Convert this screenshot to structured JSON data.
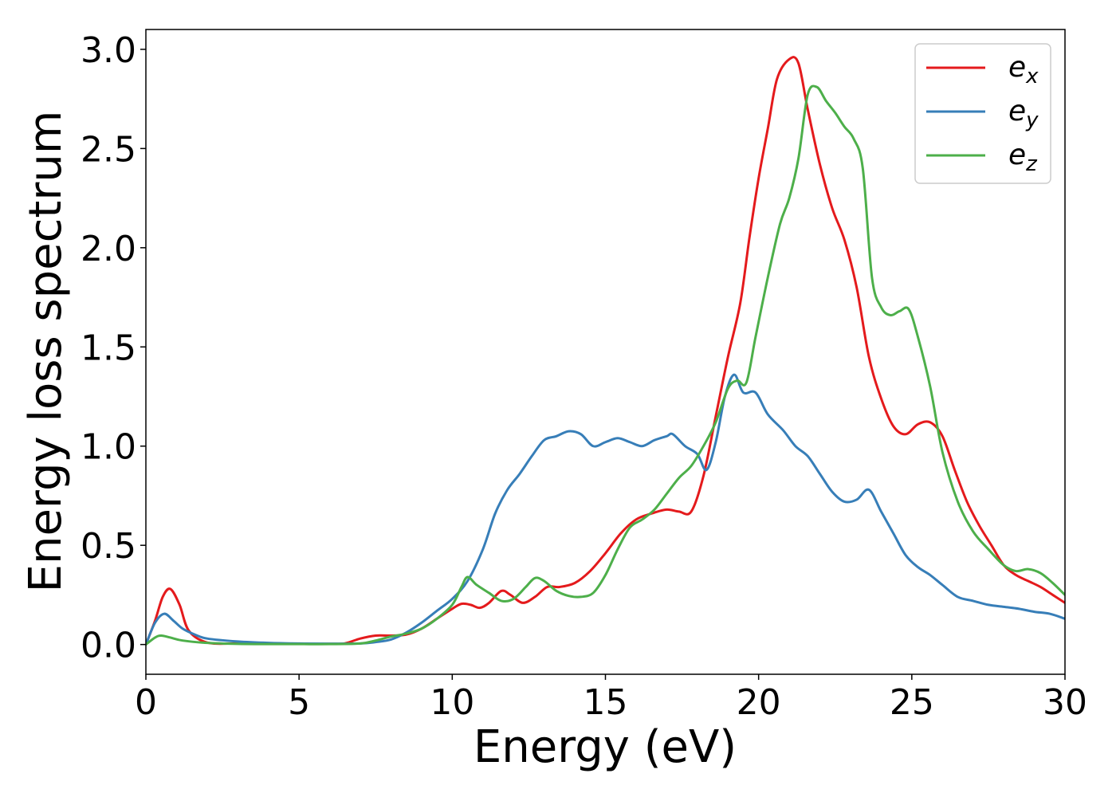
{
  "chart_data": {
    "type": "line",
    "xlabel": "Energy (eV)",
    "ylabel": "Energy loss spectrum",
    "xlim": [
      0,
      30
    ],
    "ylim": [
      -0.15,
      3.1
    ],
    "xticks": [
      0,
      5,
      10,
      15,
      20,
      25,
      30
    ],
    "xtick_labels": [
      "0",
      "5",
      "10",
      "15",
      "20",
      "25",
      "30"
    ],
    "yticks": [
      0.0,
      0.5,
      1.0,
      1.5,
      2.0,
      2.5,
      3.0
    ],
    "ytick_labels": [
      "0.0",
      "0.5",
      "1.0",
      "1.5",
      "2.0",
      "2.5",
      "3.0"
    ],
    "grid": false,
    "legend_position": "top-right",
    "series": [
      {
        "name": "e_x",
        "label_base": "e",
        "label_sub": "x",
        "color": "#e41a1c",
        "points": [
          [
            0,
            0.0
          ],
          [
            0.3,
            0.12
          ],
          [
            0.55,
            0.24
          ],
          [
            0.8,
            0.28
          ],
          [
            1.1,
            0.2
          ],
          [
            1.4,
            0.07
          ],
          [
            2.0,
            0.01
          ],
          [
            3.0,
            0.005
          ],
          [
            4.0,
            0.003
          ],
          [
            5.0,
            0.003
          ],
          [
            6.0,
            0.003
          ],
          [
            6.5,
            0.006
          ],
          [
            7.0,
            0.03
          ],
          [
            7.5,
            0.045
          ],
          [
            8.0,
            0.045
          ],
          [
            8.5,
            0.05
          ],
          [
            9.0,
            0.08
          ],
          [
            9.5,
            0.13
          ],
          [
            10.0,
            0.18
          ],
          [
            10.3,
            0.205
          ],
          [
            10.6,
            0.2
          ],
          [
            10.9,
            0.185
          ],
          [
            11.2,
            0.21
          ],
          [
            11.6,
            0.27
          ],
          [
            11.9,
            0.25
          ],
          [
            12.3,
            0.21
          ],
          [
            12.7,
            0.24
          ],
          [
            13.1,
            0.29
          ],
          [
            13.5,
            0.29
          ],
          [
            14.0,
            0.31
          ],
          [
            14.5,
            0.37
          ],
          [
            15.0,
            0.46
          ],
          [
            15.5,
            0.56
          ],
          [
            16.0,
            0.63
          ],
          [
            16.5,
            0.66
          ],
          [
            17.0,
            0.68
          ],
          [
            17.4,
            0.67
          ],
          [
            17.8,
            0.67
          ],
          [
            18.2,
            0.85
          ],
          [
            18.6,
            1.15
          ],
          [
            19.0,
            1.45
          ],
          [
            19.4,
            1.72
          ],
          [
            19.7,
            2.05
          ],
          [
            20.0,
            2.35
          ],
          [
            20.3,
            2.6
          ],
          [
            20.6,
            2.85
          ],
          [
            21.0,
            2.95
          ],
          [
            21.3,
            2.93
          ],
          [
            21.6,
            2.7
          ],
          [
            22.0,
            2.42
          ],
          [
            22.4,
            2.2
          ],
          [
            22.8,
            2.04
          ],
          [
            23.2,
            1.8
          ],
          [
            23.6,
            1.45
          ],
          [
            24.0,
            1.24
          ],
          [
            24.4,
            1.1
          ],
          [
            24.8,
            1.06
          ],
          [
            25.2,
            1.11
          ],
          [
            25.6,
            1.12
          ],
          [
            26.0,
            1.05
          ],
          [
            26.4,
            0.88
          ],
          [
            26.8,
            0.72
          ],
          [
            27.2,
            0.6
          ],
          [
            27.6,
            0.5
          ],
          [
            28.0,
            0.4
          ],
          [
            28.4,
            0.35
          ],
          [
            28.8,
            0.32
          ],
          [
            29.2,
            0.29
          ],
          [
            29.6,
            0.25
          ],
          [
            30.0,
            0.21
          ]
        ]
      },
      {
        "name": "e_y",
        "label_base": "e",
        "label_sub": "y",
        "color": "#377eb8",
        "points": [
          [
            0,
            0.0
          ],
          [
            0.3,
            0.11
          ],
          [
            0.6,
            0.155
          ],
          [
            0.9,
            0.12
          ],
          [
            1.2,
            0.08
          ],
          [
            1.6,
            0.05
          ],
          [
            2.0,
            0.03
          ],
          [
            3.0,
            0.015
          ],
          [
            4.0,
            0.008
          ],
          [
            5.0,
            0.005
          ],
          [
            6.0,
            0.004
          ],
          [
            7.0,
            0.005
          ],
          [
            7.5,
            0.012
          ],
          [
            8.0,
            0.025
          ],
          [
            8.5,
            0.06
          ],
          [
            9.0,
            0.11
          ],
          [
            9.5,
            0.17
          ],
          [
            10.0,
            0.23
          ],
          [
            10.5,
            0.32
          ],
          [
            11.0,
            0.48
          ],
          [
            11.4,
            0.66
          ],
          [
            11.8,
            0.78
          ],
          [
            12.2,
            0.86
          ],
          [
            12.6,
            0.95
          ],
          [
            13.0,
            1.03
          ],
          [
            13.4,
            1.05
          ],
          [
            13.8,
            1.075
          ],
          [
            14.2,
            1.06
          ],
          [
            14.6,
            1.0
          ],
          [
            15.0,
            1.02
          ],
          [
            15.4,
            1.04
          ],
          [
            15.8,
            1.02
          ],
          [
            16.2,
            1.0
          ],
          [
            16.6,
            1.03
          ],
          [
            17.0,
            1.05
          ],
          [
            17.2,
            1.06
          ],
          [
            17.6,
            1.0
          ],
          [
            18.0,
            0.96
          ],
          [
            18.3,
            0.88
          ],
          [
            18.6,
            1.02
          ],
          [
            18.9,
            1.25
          ],
          [
            19.2,
            1.36
          ],
          [
            19.5,
            1.27
          ],
          [
            19.9,
            1.27
          ],
          [
            20.3,
            1.16
          ],
          [
            20.8,
            1.08
          ],
          [
            21.2,
            1.0
          ],
          [
            21.6,
            0.95
          ],
          [
            22.0,
            0.86
          ],
          [
            22.4,
            0.77
          ],
          [
            22.8,
            0.72
          ],
          [
            23.2,
            0.73
          ],
          [
            23.6,
            0.78
          ],
          [
            24.0,
            0.67
          ],
          [
            24.4,
            0.56
          ],
          [
            24.8,
            0.45
          ],
          [
            25.2,
            0.39
          ],
          [
            25.6,
            0.35
          ],
          [
            26.0,
            0.3
          ],
          [
            26.5,
            0.24
          ],
          [
            27.0,
            0.22
          ],
          [
            27.5,
            0.2
          ],
          [
            28.0,
            0.19
          ],
          [
            28.5,
            0.18
          ],
          [
            29.0,
            0.165
          ],
          [
            29.5,
            0.155
          ],
          [
            30.0,
            0.13
          ]
        ]
      },
      {
        "name": "e_z",
        "label_base": "e",
        "label_sub": "z",
        "color": "#4daf4a",
        "points": [
          [
            0,
            0.0
          ],
          [
            0.3,
            0.035
          ],
          [
            0.5,
            0.045
          ],
          [
            0.8,
            0.035
          ],
          [
            1.2,
            0.02
          ],
          [
            2.0,
            0.008
          ],
          [
            3.0,
            0.003
          ],
          [
            4.0,
            0.002
          ],
          [
            5.0,
            0.002
          ],
          [
            6.0,
            0.002
          ],
          [
            7.0,
            0.005
          ],
          [
            7.5,
            0.02
          ],
          [
            8.0,
            0.04
          ],
          [
            8.5,
            0.055
          ],
          [
            9.0,
            0.08
          ],
          [
            9.5,
            0.13
          ],
          [
            10.0,
            0.2
          ],
          [
            10.3,
            0.29
          ],
          [
            10.5,
            0.34
          ],
          [
            10.8,
            0.3
          ],
          [
            11.2,
            0.26
          ],
          [
            11.6,
            0.22
          ],
          [
            12.0,
            0.23
          ],
          [
            12.4,
            0.29
          ],
          [
            12.7,
            0.335
          ],
          [
            13.0,
            0.32
          ],
          [
            13.4,
            0.27
          ],
          [
            13.8,
            0.245
          ],
          [
            14.2,
            0.24
          ],
          [
            14.6,
            0.26
          ],
          [
            15.0,
            0.35
          ],
          [
            15.4,
            0.48
          ],
          [
            15.8,
            0.59
          ],
          [
            16.2,
            0.63
          ],
          [
            16.6,
            0.68
          ],
          [
            17.0,
            0.76
          ],
          [
            17.4,
            0.84
          ],
          [
            17.8,
            0.9
          ],
          [
            18.2,
            1.0
          ],
          [
            18.6,
            1.12
          ],
          [
            19.0,
            1.29
          ],
          [
            19.3,
            1.33
          ],
          [
            19.6,
            1.32
          ],
          [
            19.9,
            1.55
          ],
          [
            20.3,
            1.85
          ],
          [
            20.7,
            2.12
          ],
          [
            21.0,
            2.25
          ],
          [
            21.3,
            2.45
          ],
          [
            21.6,
            2.77
          ],
          [
            21.9,
            2.81
          ],
          [
            22.2,
            2.74
          ],
          [
            22.5,
            2.68
          ],
          [
            22.8,
            2.61
          ],
          [
            23.1,
            2.55
          ],
          [
            23.4,
            2.4
          ],
          [
            23.7,
            1.85
          ],
          [
            24.0,
            1.7
          ],
          [
            24.3,
            1.66
          ],
          [
            24.6,
            1.68
          ],
          [
            24.9,
            1.69
          ],
          [
            25.2,
            1.55
          ],
          [
            25.6,
            1.3
          ],
          [
            26.0,
            0.97
          ],
          [
            26.5,
            0.72
          ],
          [
            27.0,
            0.57
          ],
          [
            27.5,
            0.48
          ],
          [
            28.0,
            0.4
          ],
          [
            28.4,
            0.37
          ],
          [
            28.8,
            0.38
          ],
          [
            29.2,
            0.36
          ],
          [
            29.6,
            0.31
          ],
          [
            30.0,
            0.25
          ]
        ]
      }
    ]
  }
}
